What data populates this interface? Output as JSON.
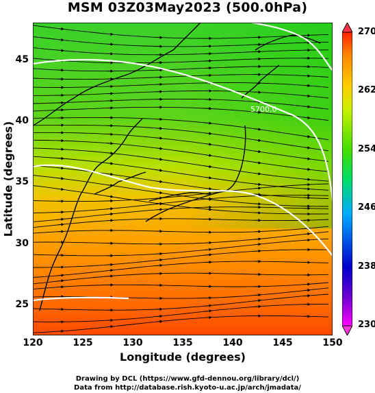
{
  "title": "MSM 03Z03May2023 (500.0hPa)",
  "map": {
    "x_axis": {
      "label": "Longitude (degrees)",
      "range": [
        120,
        150
      ],
      "ticks": [
        "120",
        "125",
        "130",
        "135",
        "140",
        "145",
        "150"
      ]
    },
    "y_axis": {
      "label": "Latitude  (degrees)",
      "range": [
        22.5,
        48
      ],
      "ticks": [
        "25",
        "30",
        "35",
        "40",
        "45"
      ]
    },
    "contour_label": "5700.0",
    "field": "temperature (K) shaded, streamlines of wind, geopotential height contours"
  },
  "colorbar": {
    "min": 230,
    "max": 270,
    "ticks": [
      "270",
      "262",
      "254",
      "246",
      "238",
      "230"
    ],
    "colors": [
      "#ff00ff",
      "#0000cc",
      "#00aaff",
      "#00dd66",
      "#44dd00",
      "#ccf000",
      "#ffcc00",
      "#ff8800",
      "#ff2200"
    ]
  },
  "credits": {
    "line1": "Drawing by DCL (https://www.gfd-dennou.org/library/dcl/)",
    "line2": "Data from http://database.rish.kyoto-u.ac.jp/arch/jmadata/"
  }
}
